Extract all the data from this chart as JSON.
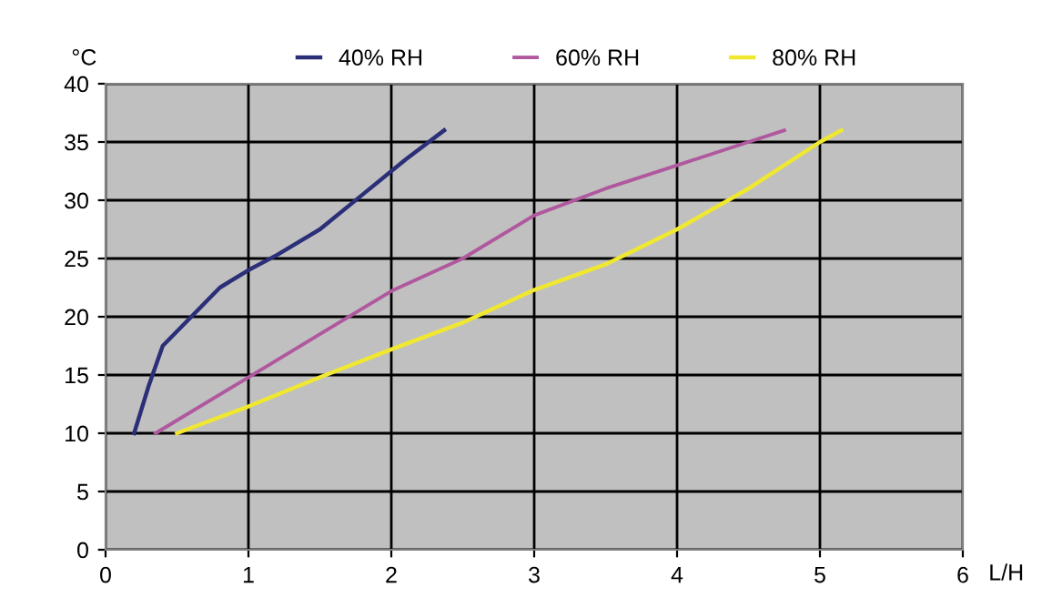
{
  "chart_data": {
    "type": "line",
    "xlabel": "L/H",
    "ylabel": "°C",
    "xlim": [
      0,
      6
    ],
    "ylim": [
      0,
      40
    ],
    "xticks": [
      0,
      1,
      2,
      3,
      4,
      5,
      6
    ],
    "yticks": [
      0,
      5,
      10,
      15,
      20,
      25,
      30,
      35,
      40
    ],
    "grid": true,
    "legend": "top",
    "marker": "none",
    "line_style": "solid",
    "series": [
      {
        "name": "40% RH",
        "color": "#2b2f77",
        "x": [
          0.2,
          0.3,
          0.4,
          0.6,
          0.8,
          1,
          1.2,
          1.5,
          1.8,
          2.1,
          2.37
        ],
        "values": [
          10,
          14,
          17.5,
          20,
          22.5,
          24,
          25.3,
          27.5,
          30.5,
          33.5,
          36
        ]
      },
      {
        "name": "60% RH",
        "color": "#b0589e",
        "x": [
          0.35,
          1,
          1.5,
          2,
          2.5,
          3,
          3.5,
          4,
          4.5,
          4.75
        ],
        "values": [
          10,
          14.8,
          18.5,
          22.2,
          25,
          28.7,
          31,
          33,
          35,
          36
        ]
      },
      {
        "name": "80% RH",
        "color": "#f0e830",
        "x": [
          0.5,
          1,
          1.5,
          2,
          2.5,
          3,
          3.5,
          4,
          4.5,
          5,
          5.15
        ],
        "values": [
          10,
          12.3,
          14.8,
          17.2,
          19.5,
          22.3,
          24.5,
          27.5,
          31,
          35,
          36
        ]
      }
    ]
  }
}
